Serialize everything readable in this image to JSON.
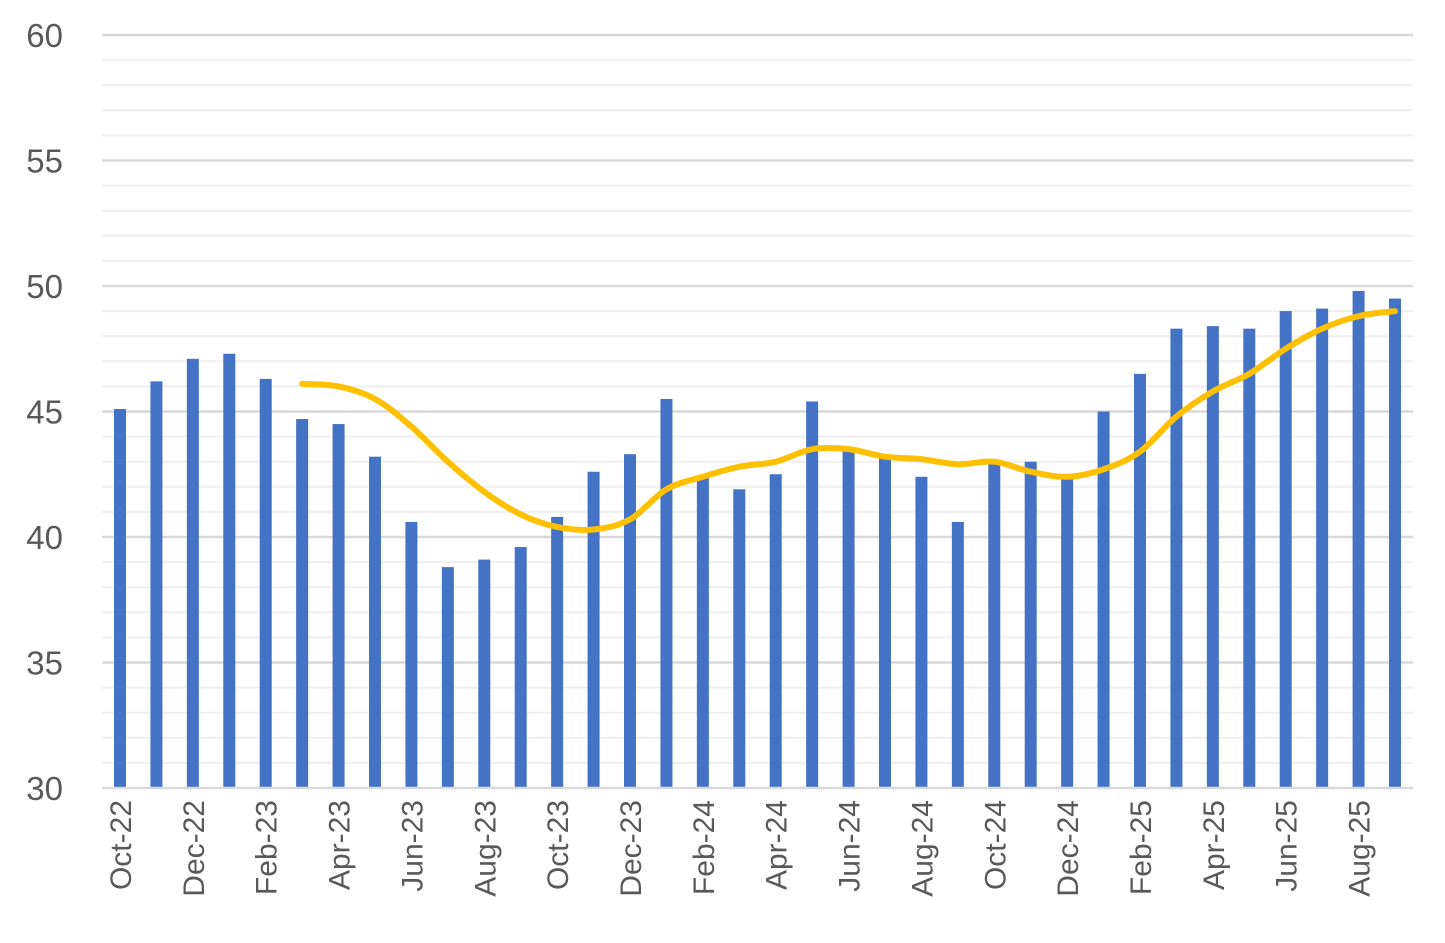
{
  "chart_data": {
    "type": "bar",
    "title": "",
    "xlabel": "",
    "ylabel": "",
    "ylim": [
      30,
      60
    ],
    "y_ticks": [
      "30",
      "35",
      "40",
      "45",
      "50",
      "55",
      "60"
    ],
    "grid": true,
    "legend": "none",
    "categories": [
      "Oct-22",
      "Nov-22",
      "Dec-22",
      "Jan-23",
      "Feb-23",
      "Mar-23",
      "Apr-23",
      "May-23",
      "Jun-23",
      "Jul-23",
      "Aug-23",
      "Sep-23",
      "Oct-23",
      "Nov-23",
      "Dec-23",
      "Jan-24",
      "Feb-24",
      "Mar-24",
      "Apr-24",
      "May-24",
      "Jun-24",
      "Jul-24",
      "Aug-24",
      "Sep-24",
      "Oct-24",
      "Nov-24",
      "Dec-24",
      "Jan-25",
      "Feb-25",
      "Mar-25",
      "Apr-25",
      "May-25",
      "Jun-25",
      "Jul-25",
      "Aug-25",
      "Sep-25"
    ],
    "x_tick_labels": [
      "Oct-22",
      "Dec-22",
      "Feb-23",
      "Apr-23",
      "Jun-23",
      "Aug-23",
      "Oct-23",
      "Dec-23",
      "Feb-24",
      "Apr-24",
      "Jun-24",
      "Aug-24",
      "Oct-24",
      "Dec-24",
      "Feb-25",
      "Apr-25",
      "Jun-25",
      "Aug-25"
    ],
    "series": [
      {
        "type": "bar",
        "color": "#4472C4",
        "values": [
          45.1,
          46.2,
          47.1,
          47.3,
          46.3,
          44.7,
          44.5,
          43.2,
          40.6,
          38.8,
          39.1,
          39.6,
          40.8,
          42.6,
          43.3,
          45.5,
          42.4,
          41.9,
          42.5,
          45.4,
          43.5,
          43.2,
          42.4,
          40.6,
          42.9,
          43.0,
          42.5,
          45.0,
          46.5,
          48.3,
          48.4,
          48.3,
          49.0,
          49.1,
          49.8,
          49.5
        ]
      },
      {
        "type": "line",
        "color": "#FFC000",
        "values": [
          null,
          null,
          null,
          null,
          null,
          46.1,
          46.0,
          45.5,
          44.4,
          43.0,
          41.8,
          40.9,
          40.4,
          40.3,
          40.7,
          41.9,
          42.4,
          42.8,
          43.0,
          43.5,
          43.5,
          43.2,
          43.1,
          42.9,
          43.0,
          42.6,
          42.4,
          42.7,
          43.4,
          44.8,
          45.8,
          46.5,
          47.5,
          48.3,
          48.8,
          49.0
        ]
      }
    ]
  }
}
